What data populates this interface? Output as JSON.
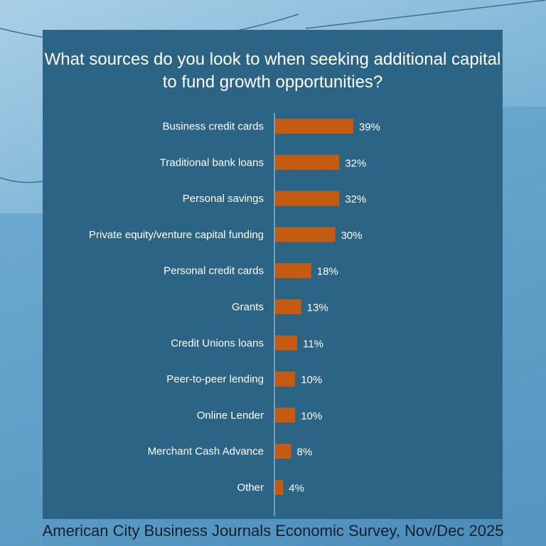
{
  "chart_data": {
    "type": "bar",
    "orientation": "horizontal",
    "title": "What sources do you look to when seeking additional capital to fund growth opportunities?",
    "categories": [
      "Business credit cards",
      "Traditional bank loans",
      "Personal savings",
      "Private equity/venture capital funding",
      "Personal credit cards",
      "Grants",
      "Credit Unions loans",
      "Peer-to-peer lending",
      "Online Lender",
      "Merchant Cash Advance",
      "Other"
    ],
    "values": [
      39,
      32,
      32,
      30,
      18,
      13,
      11,
      10,
      10,
      8,
      4
    ],
    "value_suffix": "%",
    "xlabel": "",
    "ylabel": "",
    "xlim": [
      0,
      100
    ],
    "grid": false,
    "colors": {
      "bar": "#c55a11",
      "panel": "#2b6485",
      "text": "#ffffff",
      "axis": "#c8d6e0"
    }
  },
  "source": "American City Business Journals Economic Survey, Nov/Dec 2025"
}
